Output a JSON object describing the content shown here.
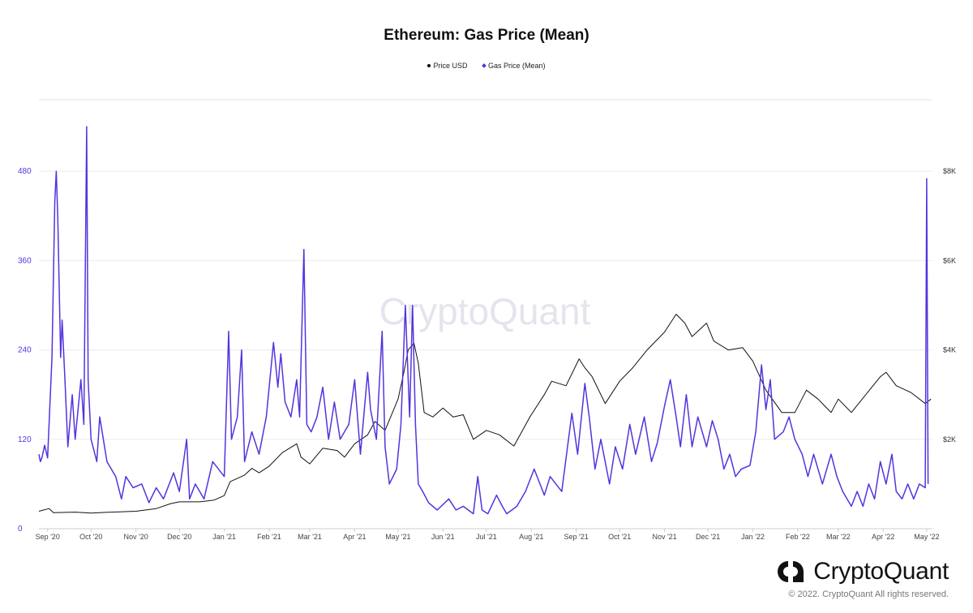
{
  "chart_data": {
    "type": "line",
    "title": "Ethereum: Gas Price (Mean)",
    "legend_position": "top-center",
    "grid": true,
    "watermark": "CryptoQuant",
    "x_ticks": [
      "Sep '20",
      "Oct '20",
      "Nov '20",
      "Dec '20",
      "Jan '21",
      "Feb '21",
      "Mar '21",
      "Apr '21",
      "May '21",
      "Jun '21",
      "Jul '21",
      "Aug '21",
      "Sep '21",
      "Oct '21",
      "Nov '21",
      "Dec '21",
      "Jan '22",
      "Feb '22",
      "Mar '22",
      "Apr '22",
      "May '22"
    ],
    "x_range": [
      "2020-08-26",
      "2022-05-05"
    ],
    "left_axis": {
      "ylim": [
        0,
        576
      ],
      "ticks": [
        0,
        120,
        240,
        360,
        480
      ],
      "tick_labels": [
        "0",
        "120",
        "240",
        "360",
        "480"
      ],
      "color": "#5533dd"
    },
    "right_axis": {
      "ylim": [
        0,
        9600
      ],
      "ticks": [
        2000,
        4000,
        6000,
        8000
      ],
      "tick_labels": [
        "$2K",
        "$4K",
        "$6K",
        "$8K"
      ],
      "color": "#333333"
    },
    "series": [
      {
        "name": "Price USD",
        "axis": "right",
        "color": "#111111",
        "points": [
          [
            "2020-08-26",
            390
          ],
          [
            "2020-09-02",
            450
          ],
          [
            "2020-09-05",
            360
          ],
          [
            "2020-09-20",
            370
          ],
          [
            "2020-10-01",
            350
          ],
          [
            "2020-10-15",
            370
          ],
          [
            "2020-11-01",
            390
          ],
          [
            "2020-11-15",
            450
          ],
          [
            "2020-11-25",
            560
          ],
          [
            "2020-12-01",
            600
          ],
          [
            "2020-12-15",
            600
          ],
          [
            "2020-12-25",
            640
          ],
          [
            "2021-01-01",
            740
          ],
          [
            "2021-01-05",
            1050
          ],
          [
            "2021-01-15",
            1200
          ],
          [
            "2021-01-20",
            1350
          ],
          [
            "2021-01-25",
            1250
          ],
          [
            "2021-02-01",
            1400
          ],
          [
            "2021-02-10",
            1700
          ],
          [
            "2021-02-20",
            1900
          ],
          [
            "2021-02-23",
            1600
          ],
          [
            "2021-03-01",
            1450
          ],
          [
            "2021-03-10",
            1800
          ],
          [
            "2021-03-20",
            1750
          ],
          [
            "2021-03-25",
            1600
          ],
          [
            "2021-04-01",
            1900
          ],
          [
            "2021-04-10",
            2100
          ],
          [
            "2021-04-15",
            2400
          ],
          [
            "2021-04-22",
            2200
          ],
          [
            "2021-05-01",
            2900
          ],
          [
            "2021-05-05",
            3500
          ],
          [
            "2021-05-08",
            4000
          ],
          [
            "2021-05-12",
            4150
          ],
          [
            "2021-05-15",
            3700
          ],
          [
            "2021-05-19",
            2600
          ],
          [
            "2021-05-25",
            2500
          ],
          [
            "2021-06-01",
            2700
          ],
          [
            "2021-06-08",
            2500
          ],
          [
            "2021-06-15",
            2550
          ],
          [
            "2021-06-22",
            2000
          ],
          [
            "2021-07-01",
            2200
          ],
          [
            "2021-07-10",
            2100
          ],
          [
            "2021-07-20",
            1850
          ],
          [
            "2021-07-31",
            2500
          ],
          [
            "2021-08-10",
            3000
          ],
          [
            "2021-08-15",
            3300
          ],
          [
            "2021-08-25",
            3200
          ],
          [
            "2021-09-03",
            3800
          ],
          [
            "2021-09-07",
            3600
          ],
          [
            "2021-09-12",
            3400
          ],
          [
            "2021-09-21",
            2800
          ],
          [
            "2021-10-01",
            3300
          ],
          [
            "2021-10-10",
            3600
          ],
          [
            "2021-10-20",
            4000
          ],
          [
            "2021-11-01",
            4400
          ],
          [
            "2021-11-09",
            4800
          ],
          [
            "2021-11-15",
            4600
          ],
          [
            "2021-11-20",
            4300
          ],
          [
            "2021-11-30",
            4600
          ],
          [
            "2021-12-05",
            4200
          ],
          [
            "2021-12-15",
            4000
          ],
          [
            "2021-12-25",
            4050
          ],
          [
            "2022-01-01",
            3750
          ],
          [
            "2022-01-10",
            3100
          ],
          [
            "2022-01-21",
            2600
          ],
          [
            "2022-01-30",
            2600
          ],
          [
            "2022-02-07",
            3100
          ],
          [
            "2022-02-15",
            2900
          ],
          [
            "2022-02-24",
            2600
          ],
          [
            "2022-03-01",
            2900
          ],
          [
            "2022-03-10",
            2600
          ],
          [
            "2022-03-20",
            3000
          ],
          [
            "2022-03-30",
            3400
          ],
          [
            "2022-04-03",
            3500
          ],
          [
            "2022-04-10",
            3200
          ],
          [
            "2022-04-20",
            3050
          ],
          [
            "2022-04-30",
            2800
          ],
          [
            "2022-05-04",
            2900
          ]
        ]
      },
      {
        "name": "Gas Price (Mean)",
        "axis": "left",
        "color": "#5533dd",
        "points": [
          [
            "2020-08-26",
            100
          ],
          [
            "2020-08-27",
            90
          ],
          [
            "2020-08-28",
            95
          ],
          [
            "2020-08-30",
            112
          ],
          [
            "2020-09-01",
            95
          ],
          [
            "2020-09-04",
            230
          ],
          [
            "2020-09-06",
            440
          ],
          [
            "2020-09-07",
            480
          ],
          [
            "2020-09-08",
            420
          ],
          [
            "2020-09-10",
            230
          ],
          [
            "2020-09-11",
            280
          ],
          [
            "2020-09-13",
            200
          ],
          [
            "2020-09-15",
            110
          ],
          [
            "2020-09-18",
            180
          ],
          [
            "2020-09-20",
            120
          ],
          [
            "2020-09-24",
            200
          ],
          [
            "2020-09-26",
            140
          ],
          [
            "2020-09-28",
            540
          ],
          [
            "2020-09-29",
            200
          ],
          [
            "2020-10-01",
            120
          ],
          [
            "2020-10-05",
            90
          ],
          [
            "2020-10-07",
            150
          ],
          [
            "2020-10-12",
            90
          ],
          [
            "2020-10-18",
            70
          ],
          [
            "2020-10-22",
            40
          ],
          [
            "2020-10-25",
            70
          ],
          [
            "2020-10-30",
            55
          ],
          [
            "2020-11-05",
            60
          ],
          [
            "2020-11-10",
            35
          ],
          [
            "2020-11-15",
            55
          ],
          [
            "2020-11-20",
            40
          ],
          [
            "2020-11-27",
            75
          ],
          [
            "2020-12-01",
            50
          ],
          [
            "2020-12-06",
            120
          ],
          [
            "2020-12-08",
            40
          ],
          [
            "2020-12-12",
            60
          ],
          [
            "2020-12-18",
            40
          ],
          [
            "2020-12-24",
            90
          ],
          [
            "2021-01-01",
            70
          ],
          [
            "2021-01-04",
            265
          ],
          [
            "2021-01-06",
            120
          ],
          [
            "2021-01-10",
            150
          ],
          [
            "2021-01-13",
            240
          ],
          [
            "2021-01-15",
            90
          ],
          [
            "2021-01-20",
            130
          ],
          [
            "2021-01-25",
            100
          ],
          [
            "2021-01-30",
            150
          ],
          [
            "2021-02-04",
            250
          ],
          [
            "2021-02-07",
            190
          ],
          [
            "2021-02-09",
            235
          ],
          [
            "2021-02-12",
            170
          ],
          [
            "2021-02-16",
            150
          ],
          [
            "2021-02-20",
            200
          ],
          [
            "2021-02-22",
            150
          ],
          [
            "2021-02-25",
            375
          ],
          [
            "2021-02-27",
            140
          ],
          [
            "2021-03-02",
            130
          ],
          [
            "2021-03-06",
            150
          ],
          [
            "2021-03-10",
            190
          ],
          [
            "2021-03-14",
            120
          ],
          [
            "2021-03-18",
            170
          ],
          [
            "2021-03-22",
            120
          ],
          [
            "2021-03-28",
            140
          ],
          [
            "2021-04-01",
            200
          ],
          [
            "2021-04-05",
            100
          ],
          [
            "2021-04-10",
            210
          ],
          [
            "2021-04-12",
            160
          ],
          [
            "2021-04-16",
            120
          ],
          [
            "2021-04-20",
            265
          ],
          [
            "2021-04-22",
            110
          ],
          [
            "2021-04-25",
            60
          ],
          [
            "2021-04-30",
            80
          ],
          [
            "2021-05-03",
            140
          ],
          [
            "2021-05-06",
            300
          ],
          [
            "2021-05-09",
            150
          ],
          [
            "2021-05-11",
            300
          ],
          [
            "2021-05-13",
            140
          ],
          [
            "2021-05-15",
            60
          ],
          [
            "2021-05-18",
            50
          ],
          [
            "2021-05-22",
            35
          ],
          [
            "2021-05-28",
            25
          ],
          [
            "2021-06-05",
            40
          ],
          [
            "2021-06-10",
            25
          ],
          [
            "2021-06-15",
            30
          ],
          [
            "2021-06-22",
            20
          ],
          [
            "2021-06-25",
            70
          ],
          [
            "2021-06-28",
            25
          ],
          [
            "2021-07-02",
            20
          ],
          [
            "2021-07-08",
            45
          ],
          [
            "2021-07-12",
            30
          ],
          [
            "2021-07-15",
            20
          ],
          [
            "2021-07-22",
            30
          ],
          [
            "2021-07-28",
            50
          ],
          [
            "2021-08-03",
            80
          ],
          [
            "2021-08-07",
            60
          ],
          [
            "2021-08-10",
            45
          ],
          [
            "2021-08-14",
            70
          ],
          [
            "2021-08-18",
            60
          ],
          [
            "2021-08-22",
            50
          ],
          [
            "2021-08-29",
            155
          ],
          [
            "2021-09-02",
            100
          ],
          [
            "2021-09-07",
            195
          ],
          [
            "2021-09-10",
            150
          ],
          [
            "2021-09-14",
            80
          ],
          [
            "2021-09-18",
            120
          ],
          [
            "2021-09-24",
            60
          ],
          [
            "2021-09-28",
            110
          ],
          [
            "2021-10-03",
            80
          ],
          [
            "2021-10-08",
            140
          ],
          [
            "2021-10-12",
            100
          ],
          [
            "2021-10-18",
            150
          ],
          [
            "2021-10-23",
            90
          ],
          [
            "2021-10-27",
            115
          ],
          [
            "2021-11-01",
            165
          ],
          [
            "2021-11-05",
            200
          ],
          [
            "2021-11-09",
            150
          ],
          [
            "2021-11-12",
            110
          ],
          [
            "2021-11-16",
            180
          ],
          [
            "2021-11-20",
            110
          ],
          [
            "2021-11-24",
            150
          ],
          [
            "2021-11-30",
            110
          ],
          [
            "2021-12-04",
            145
          ],
          [
            "2021-12-08",
            120
          ],
          [
            "2021-12-12",
            80
          ],
          [
            "2021-12-16",
            100
          ],
          [
            "2021-12-20",
            70
          ],
          [
            "2021-12-24",
            80
          ],
          [
            "2021-12-30",
            85
          ],
          [
            "2022-01-03",
            130
          ],
          [
            "2022-01-07",
            220
          ],
          [
            "2022-01-10",
            160
          ],
          [
            "2022-01-13",
            200
          ],
          [
            "2022-01-16",
            120
          ],
          [
            "2022-01-22",
            130
          ],
          [
            "2022-01-26",
            150
          ],
          [
            "2022-01-30",
            120
          ],
          [
            "2022-02-04",
            100
          ],
          [
            "2022-02-08",
            70
          ],
          [
            "2022-02-12",
            100
          ],
          [
            "2022-02-18",
            60
          ],
          [
            "2022-02-24",
            100
          ],
          [
            "2022-02-28",
            70
          ],
          [
            "2022-03-04",
            50
          ],
          [
            "2022-03-10",
            30
          ],
          [
            "2022-03-14",
            50
          ],
          [
            "2022-03-18",
            30
          ],
          [
            "2022-03-22",
            60
          ],
          [
            "2022-03-26",
            40
          ],
          [
            "2022-03-30",
            90
          ],
          [
            "2022-04-03",
            60
          ],
          [
            "2022-04-07",
            100
          ],
          [
            "2022-04-10",
            50
          ],
          [
            "2022-04-14",
            40
          ],
          [
            "2022-04-18",
            60
          ],
          [
            "2022-04-22",
            40
          ],
          [
            "2022-04-26",
            60
          ],
          [
            "2022-04-30",
            55
          ],
          [
            "2022-05-01",
            470
          ],
          [
            "2022-05-02",
            60
          ]
        ]
      }
    ]
  },
  "branding": {
    "watermark": "CryptoQuant",
    "logo_text": "CryptoQuant",
    "copyright": "© 2022. CryptoQuant All rights reserved."
  }
}
